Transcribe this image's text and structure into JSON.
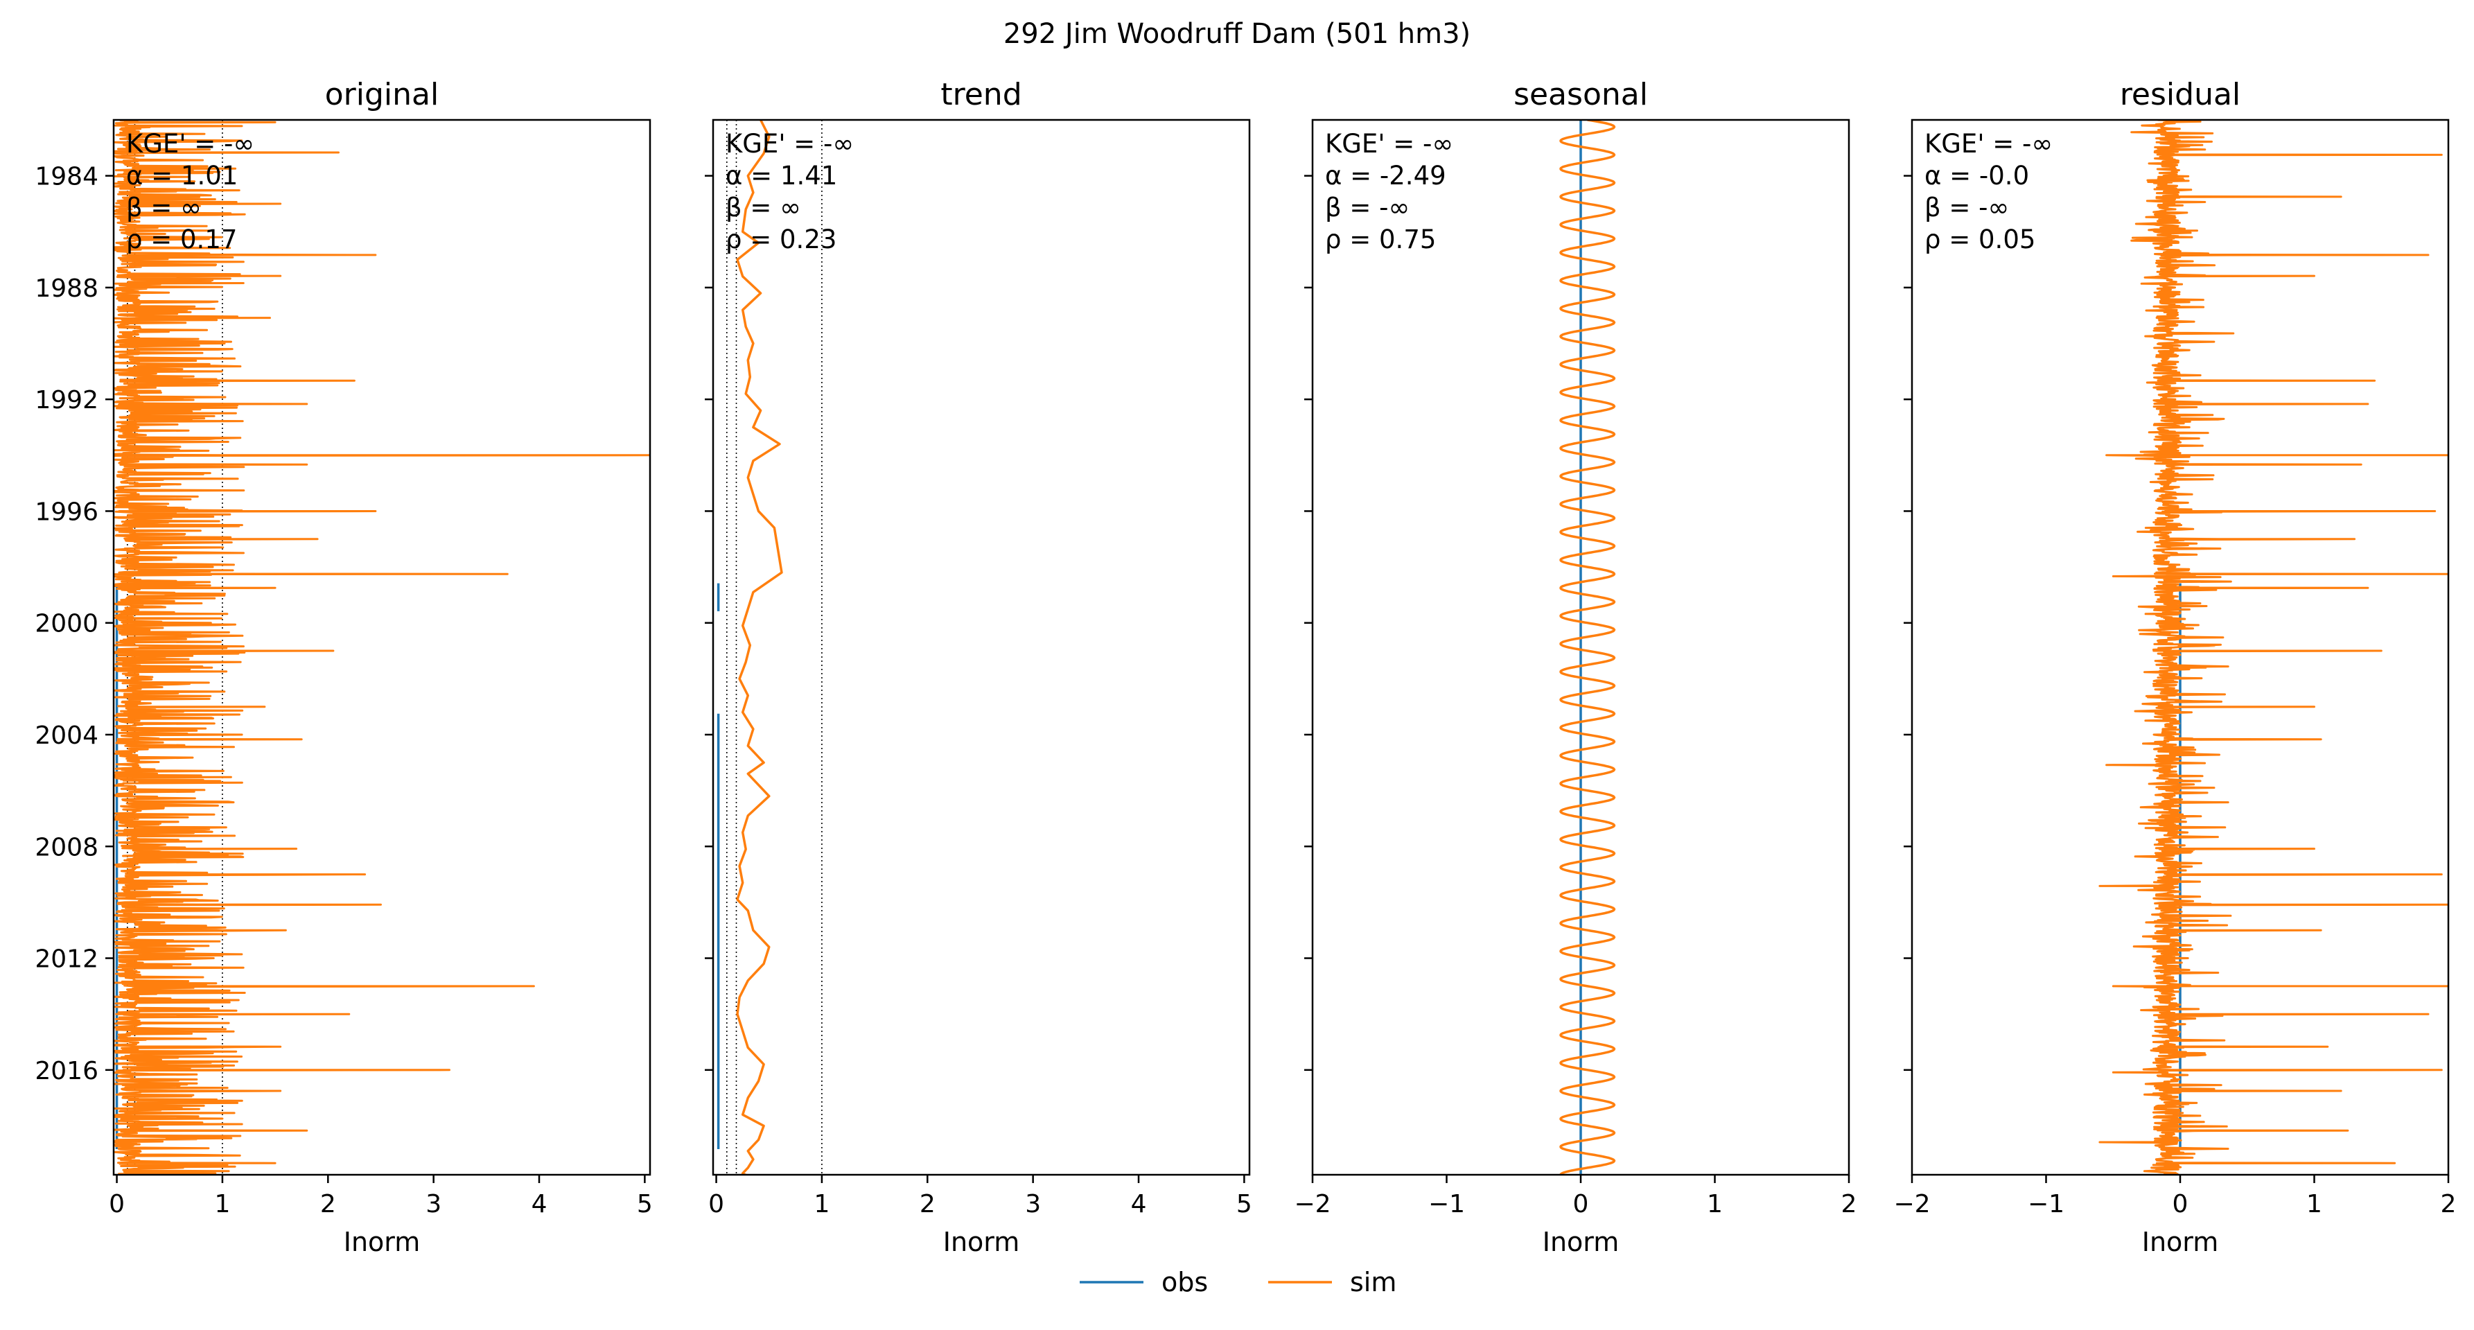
{
  "figure": {
    "title": "292  Jim Woodruff Dam (501 hm3)",
    "xlabel": "Inorm",
    "legend": [
      {
        "label": "obs",
        "color": "#1f77b4"
      },
      {
        "label": "sim",
        "color": "#ff7f0e"
      }
    ]
  },
  "colors": {
    "obs": "#1f77b4",
    "sim": "#ff7f0e",
    "reference_line": "#000000"
  },
  "chart_data": [
    {
      "type": "line",
      "title": "original",
      "xlabel": "Inorm",
      "xlim": [
        -0.03,
        5.05
      ],
      "xticks": [
        "0",
        "1",
        "2",
        "3",
        "4",
        "5"
      ],
      "ylim": [
        "1982-01",
        "2019-10"
      ],
      "yticks": [
        "1984",
        "1988",
        "1992",
        "1996",
        "2000",
        "2004",
        "2008",
        "2012",
        "2016"
      ],
      "reference_lines_x": [
        0.1,
        0.17,
        1.0
      ],
      "stats": [
        "KGE' = -∞",
        "α = 1.01",
        "β = ∞",
        "ρ = 0.17"
      ],
      "series": [
        {
          "name": "obs",
          "segments": [
            {
              "from": "1998-08",
              "to": "2018-11",
              "value": 0.0
            }
          ]
        },
        {
          "name": "sim",
          "baseline": 0.1,
          "peaks": [
            {
              "date": "1982-02",
              "value": 1.5
            },
            {
              "date": "1983-03",
              "value": 2.1
            },
            {
              "date": "1985-01",
              "value": 1.55
            },
            {
              "date": "1986-11",
              "value": 2.45
            },
            {
              "date": "1987-08",
              "value": 1.55
            },
            {
              "date": "1989-02",
              "value": 1.45
            },
            {
              "date": "1991-05",
              "value": 2.25
            },
            {
              "date": "1992-03",
              "value": 1.8
            },
            {
              "date": "1994-01",
              "value": 5.05
            },
            {
              "date": "1994-05",
              "value": 1.8
            },
            {
              "date": "1996-01",
              "value": 2.45
            },
            {
              "date": "1997-01",
              "value": 1.9
            },
            {
              "date": "1998-04",
              "value": 3.7
            },
            {
              "date": "1998-10",
              "value": 1.5
            },
            {
              "date": "2001-01",
              "value": 2.05
            },
            {
              "date": "2003-01",
              "value": 1.4
            },
            {
              "date": "2004-03",
              "value": 1.75
            },
            {
              "date": "2008-02",
              "value": 1.7
            },
            {
              "date": "2009-01",
              "value": 2.35
            },
            {
              "date": "2010-02",
              "value": 2.5
            },
            {
              "date": "2011-01",
              "value": 1.6
            },
            {
              "date": "2013-01",
              "value": 3.95
            },
            {
              "date": "2014-01",
              "value": 2.2
            },
            {
              "date": "2015-03",
              "value": 1.55
            },
            {
              "date": "2016-01",
              "value": 3.15
            },
            {
              "date": "2016-10",
              "value": 1.55
            },
            {
              "date": "2018-03",
              "value": 1.8
            },
            {
              "date": "2019-05",
              "value": 1.5
            }
          ]
        }
      ]
    },
    {
      "type": "line",
      "title": "trend",
      "xlabel": "Inorm",
      "xlim": [
        -0.03,
        5.05
      ],
      "xticks": [
        "0",
        "1",
        "2",
        "3",
        "4",
        "5"
      ],
      "ylim": [
        "1982-01",
        "2019-10"
      ],
      "yticks": [
        "1984",
        "1988",
        "1992",
        "1996",
        "2000",
        "2004",
        "2008",
        "2012",
        "2016"
      ],
      "reference_lines_x": [
        0.1,
        0.19,
        1.0
      ],
      "stats": [
        "KGE' = -∞",
        "α = 1.41",
        "β = ∞",
        "ρ = 0.23"
      ],
      "series": [
        {
          "name": "obs",
          "segments": [
            {
              "from": "1998-08",
              "to": "1999-08",
              "value": 0.02
            },
            {
              "from": "2003-04",
              "to": "2018-11",
              "value": 0.02
            }
          ]
        },
        {
          "name": "sim",
          "x": [
            0.42,
            0.5,
            0.45,
            0.3,
            0.35,
            0.28,
            0.25,
            0.4,
            0.2,
            0.25,
            0.42,
            0.25,
            0.28,
            0.35,
            0.3,
            0.32,
            0.28,
            0.42,
            0.35,
            0.6,
            0.35,
            0.3,
            0.35,
            0.4,
            0.55,
            0.62,
            0.35,
            0.3,
            0.25,
            0.32,
            0.28,
            0.22,
            0.3,
            0.25,
            0.35,
            0.3,
            0.45,
            0.3,
            0.5,
            0.3,
            0.25,
            0.28,
            0.22,
            0.25,
            0.2,
            0.3,
            0.35,
            0.5,
            0.45,
            0.3,
            0.22,
            0.2,
            0.25,
            0.3,
            0.45,
            0.4,
            0.3,
            0.25,
            0.45,
            0.4,
            0.3,
            0.35,
            0.3,
            0.25,
            0.3,
            0.5,
            0.45,
            0.2
          ],
          "y": [
            "1982.0",
            "1982.6",
            "1983.2",
            "1984.0",
            "1984.6",
            "1985.2",
            "1986.0",
            "1986.4",
            "1987.0",
            "1987.6",
            "1988.2",
            "1988.8",
            "1989.4",
            "1990.0",
            "1990.6",
            "1991.2",
            "1991.8",
            "1992.4",
            "1993.0",
            "1993.6",
            "1994.2",
            "1994.8",
            "1995.4",
            "1996.0",
            "1996.6",
            "1998.2",
            "1998.9",
            "1999.5",
            "2000.1",
            "2000.8",
            "2001.4",
            "2002.0",
            "2002.6",
            "2003.2",
            "2003.8",
            "2004.4",
            "2005.0",
            "2005.4",
            "2006.2",
            "2006.9",
            "2007.5",
            "2008.1",
            "2008.7",
            "2009.3",
            "2009.9",
            "2010.3",
            "2011.0",
            "2011.6",
            "2012.2",
            "2012.8",
            "2013.4",
            "2014.0",
            "2014.6",
            "2015.2",
            "2015.8",
            "2016.4",
            "2017.0",
            "2017.6",
            "2018.0",
            "2018.5",
            "2018.9",
            "2019.2",
            "2019.5",
            "2019.7",
            "2019.8",
            "2019.85",
            "2019.9",
            "2019.95"
          ]
        }
      ]
    },
    {
      "type": "line",
      "title": "seasonal",
      "xlabel": "Inorm",
      "xlim": [
        -2,
        2
      ],
      "xticks": [
        "−2",
        "−1",
        "0",
        "1",
        "2"
      ],
      "ylim": [
        "1982-01",
        "2019-10"
      ],
      "yticks": [
        "1984",
        "1988",
        "1992",
        "1996",
        "2000",
        "2004",
        "2008",
        "2012",
        "2016"
      ],
      "stats": [
        "KGE' = -∞",
        "α = -2.49",
        "β = -∞",
        "ρ = 0.75"
      ],
      "series": [
        {
          "name": "obs",
          "segments": [
            {
              "from": "1982-01",
              "to": "2019-10",
              "value": 0.0
            }
          ]
        },
        {
          "name": "sim",
          "annual_cycle": {
            "min": -0.15,
            "max": 0.25,
            "period_years": 1
          }
        }
      ]
    },
    {
      "type": "line",
      "title": "residual",
      "xlabel": "Inorm",
      "xlim": [
        -2,
        2
      ],
      "xticks": [
        "−2",
        "−1",
        "0",
        "1",
        "2"
      ],
      "ylim": [
        "1982-01",
        "2019-10"
      ],
      "yticks": [
        "1984",
        "1988",
        "1992",
        "1996",
        "2000",
        "2004",
        "2008",
        "2012",
        "2016"
      ],
      "stats": [
        "KGE' = -∞",
        "α = -0.0",
        "β = -∞",
        "ρ = 0.05"
      ],
      "series": [
        {
          "name": "obs",
          "segments": [
            {
              "from": "1998-08",
              "to": "2018-11",
              "value": 0.0
            }
          ]
        },
        {
          "name": "sim",
          "baseline": -0.1,
          "peaks": [
            {
              "date": "1983-04",
              "value": 1.95
            },
            {
              "date": "1984-10",
              "value": 1.2
            },
            {
              "date": "1986-11",
              "value": 1.85
            },
            {
              "date": "1987-08",
              "value": 1.0
            },
            {
              "date": "1991-05",
              "value": 1.45
            },
            {
              "date": "1992-03",
              "value": 1.4
            },
            {
              "date": "1994-01",
              "value": 2.0
            },
            {
              "date": "1994-05",
              "value": 1.35
            },
            {
              "date": "1996-01",
              "value": 1.9
            },
            {
              "date": "1997-01",
              "value": 1.3
            },
            {
              "date": "1998-04",
              "value": 2.0
            },
            {
              "date": "1998-10",
              "value": 1.4
            },
            {
              "date": "2001-01",
              "value": 1.5
            },
            {
              "date": "2003-01",
              "value": 1.0
            },
            {
              "date": "2004-03",
              "value": 1.05
            },
            {
              "date": "2008-02",
              "value": 1.0
            },
            {
              "date": "2009-01",
              "value": 1.95
            },
            {
              "date": "2010-02",
              "value": 2.0
            },
            {
              "date": "2011-01",
              "value": 1.05
            },
            {
              "date": "2013-01",
              "value": 2.0
            },
            {
              "date": "2014-01",
              "value": 1.85
            },
            {
              "date": "2015-03",
              "value": 1.1
            },
            {
              "date": "2016-01",
              "value": 1.95
            },
            {
              "date": "2016-10",
              "value": 1.2
            },
            {
              "date": "2018-03",
              "value": 1.25
            },
            {
              "date": "2019-05",
              "value": 1.6
            }
          ],
          "troughs": [
            {
              "date": "1994-01",
              "value": -0.55
            },
            {
              "date": "1998-05",
              "value": -0.5
            },
            {
              "date": "2005-02",
              "value": -0.55
            },
            {
              "date": "2009-06",
              "value": -0.6
            },
            {
              "date": "2013-01",
              "value": -0.5
            },
            {
              "date": "2016-02",
              "value": -0.5
            },
            {
              "date": "2018-08",
              "value": -0.6
            }
          ]
        }
      ]
    }
  ]
}
